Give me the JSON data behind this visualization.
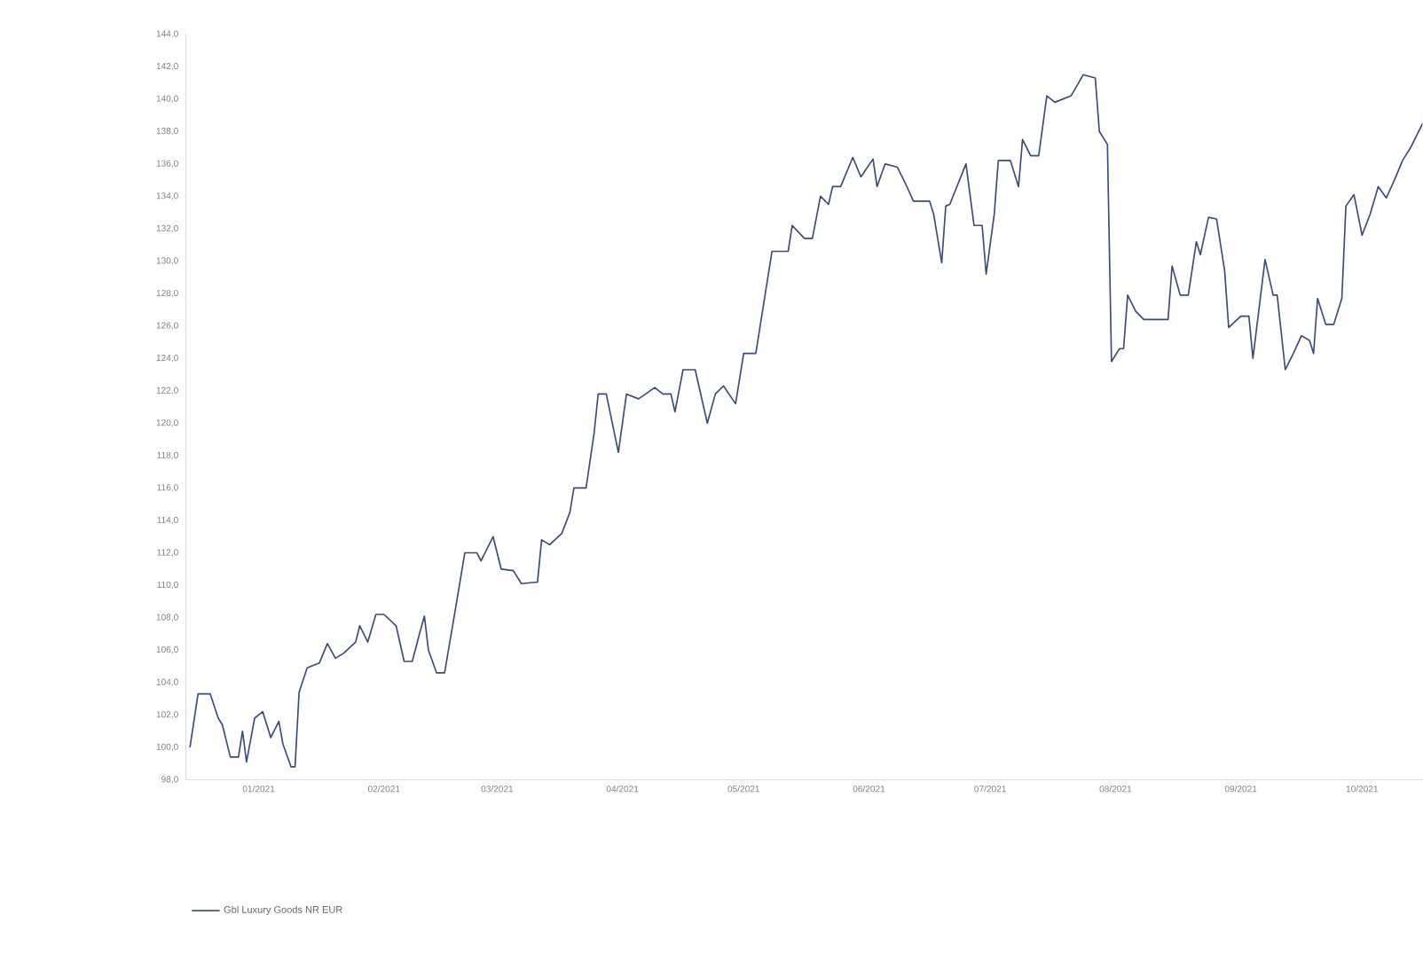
{
  "chart_data": {
    "type": "line",
    "x": [
      "2020-12-29",
      "2020-12-31",
      "2021-01-03",
      "2021-01-05",
      "2021-01-06",
      "2021-01-08",
      "2021-01-10",
      "2021-01-11",
      "2021-01-12",
      "2021-01-14",
      "2021-01-16",
      "2021-01-18",
      "2021-01-20",
      "2021-01-21",
      "2021-01-23",
      "2021-01-24",
      "2021-01-25",
      "2021-01-27",
      "2021-01-30",
      "2021-02-01",
      "2021-02-03",
      "2021-02-05",
      "2021-02-08",
      "2021-02-09",
      "2021-02-11",
      "2021-02-13",
      "2021-02-15",
      "2021-02-18",
      "2021-02-20",
      "2021-02-22",
      "2021-02-24",
      "2021-02-25",
      "2021-02-26",
      "2021-02-28",
      "2021-03-02",
      "2021-03-05",
      "2021-03-07",
      "2021-03-10",
      "2021-03-11",
      "2021-03-14",
      "2021-03-16",
      "2021-03-19",
      "2021-03-21",
      "2021-03-25",
      "2021-03-26",
      "2021-03-28",
      "2021-03-31",
      "2021-04-02",
      "2021-04-03",
      "2021-04-06",
      "2021-04-08",
      "2021-04-09",
      "2021-04-11",
      "2021-04-14",
      "2021-04-16",
      "2021-04-19",
      "2021-04-23",
      "2021-04-25",
      "2021-04-27",
      "2021-04-28",
      "2021-04-30",
      "2021-05-03",
      "2021-05-06",
      "2021-05-08",
      "2021-05-10",
      "2021-05-13",
      "2021-05-15",
      "2021-05-18",
      "2021-05-22",
      "2021-05-26",
      "2021-05-27",
      "2021-05-30",
      "2021-06-01",
      "2021-06-03",
      "2021-06-05",
      "2021-06-06",
      "2021-06-08",
      "2021-06-11",
      "2021-06-13",
      "2021-06-16",
      "2021-06-17",
      "2021-06-19",
      "2021-06-22",
      "2021-06-24",
      "2021-06-26",
      "2021-06-30",
      "2021-07-01",
      "2021-07-03",
      "2021-07-04",
      "2021-07-05",
      "2021-07-09",
      "2021-07-11",
      "2021-07-13",
      "2021-07-14",
      "2021-07-16",
      "2021-07-17",
      "2021-07-20",
      "2021-07-22",
      "2021-07-23",
      "2021-07-25",
      "2021-07-27",
      "2021-07-29",
      "2021-07-31",
      "2021-08-04",
      "2021-08-07",
      "2021-08-10",
      "2021-08-11",
      "2021-08-13",
      "2021-08-14",
      "2021-08-16",
      "2021-08-17",
      "2021-08-18",
      "2021-08-20",
      "2021-08-22",
      "2021-08-28",
      "2021-08-29",
      "2021-08-31",
      "2021-09-02",
      "2021-09-04",
      "2021-09-05",
      "2021-09-07",
      "2021-09-09",
      "2021-09-11",
      "2021-09-12",
      "2021-09-15",
      "2021-09-17",
      "2021-09-18",
      "2021-09-21",
      "2021-09-23",
      "2021-09-24",
      "2021-09-26",
      "2021-09-28",
      "2021-09-30",
      "2021-10-02",
      "2021-10-03",
      "2021-10-04",
      "2021-10-06",
      "2021-10-08",
      "2021-10-10",
      "2021-10-11",
      "2021-10-13",
      "2021-10-15",
      "2021-10-17",
      "2021-10-19",
      "2021-10-21",
      "2021-10-23",
      "2021-10-25",
      "2021-10-27",
      "2021-10-30"
    ],
    "series": [
      {
        "name": "Gbl Luxury Goods NR EUR",
        "color": "#3b4a7a",
        "values": [
          100.0,
          103.3,
          103.3,
          101.8,
          101.4,
          99.4,
          99.4,
          101.0,
          99.1,
          101.8,
          102.2,
          100.6,
          101.6,
          100.2,
          98.8,
          98.8,
          103.4,
          104.9,
          105.2,
          106.4,
          105.5,
          105.8,
          106.5,
          107.5,
          106.5,
          108.2,
          108.2,
          107.5,
          105.3,
          105.3,
          107.2,
          108.1,
          106.0,
          104.6,
          104.6,
          109.0,
          112.0,
          112.0,
          111.5,
          113.0,
          111.0,
          110.9,
          110.1,
          110.2,
          112.8,
          112.5,
          113.2,
          114.5,
          116.0,
          116.0,
          119.4,
          121.8,
          121.8,
          118.2,
          121.8,
          121.5,
          122.2,
          121.8,
          121.8,
          120.7,
          123.3,
          123.3,
          120.0,
          121.8,
          122.3,
          121.2,
          124.3,
          124.3,
          130.6,
          130.6,
          132.2,
          131.4,
          131.4,
          134.0,
          133.5,
          134.6,
          134.6,
          136.4,
          135.2,
          136.3,
          134.6,
          136.0,
          135.8,
          134.8,
          133.7,
          133.7,
          132.9,
          129.9,
          133.4,
          133.5,
          136.0,
          132.2,
          132.2,
          129.2,
          132.9,
          136.2,
          136.2,
          134.6,
          137.5,
          136.5,
          136.5,
          140.2,
          139.8,
          140.2,
          141.5,
          141.3,
          138.0,
          137.2,
          123.8,
          124.6,
          124.6,
          127.9,
          126.9,
          126.4,
          126.4,
          129.7,
          127.9,
          127.9,
          131.2,
          130.4,
          132.7,
          132.6,
          129.4,
          125.9,
          126.6,
          126.6,
          124.0,
          130.1,
          127.9,
          127.9,
          123.3,
          124.3,
          125.4,
          125.1,
          124.3,
          127.7,
          126.1,
          126.1,
          127.7,
          133.4,
          134.1,
          131.6,
          132.9,
          134.6,
          133.9,
          135.0,
          136.2,
          137.0,
          138.5
        ]
      }
    ],
    "xlim": [
      "2020-12-28",
      "2021-10-30"
    ],
    "xticks": [
      {
        "value": "2021-01-15",
        "label": "01/2021"
      },
      {
        "value": "2021-02-15",
        "label": "02/2021"
      },
      {
        "value": "2021-03-15",
        "label": "03/2021"
      },
      {
        "value": "2021-04-15",
        "label": "04/2021"
      },
      {
        "value": "2021-05-15",
        "label": "05/2021"
      },
      {
        "value": "2021-06-15",
        "label": "06/2021"
      },
      {
        "value": "2021-07-15",
        "label": "07/2021"
      },
      {
        "value": "2021-08-15",
        "label": "08/2021"
      },
      {
        "value": "2021-09-15",
        "label": "09/2021"
      },
      {
        "value": "2021-10-15",
        "label": "10/2021"
      }
    ],
    "ylim": [
      98,
      144
    ],
    "yticks": [
      {
        "value": 98,
        "label": "98,0"
      },
      {
        "value": 100,
        "label": "100,0"
      },
      {
        "value": 102,
        "label": "102,0"
      },
      {
        "value": 104,
        "label": "104,0"
      },
      {
        "value": 106,
        "label": "106,0"
      },
      {
        "value": 108,
        "label": "108,0"
      },
      {
        "value": 110,
        "label": "110,0"
      },
      {
        "value": 112,
        "label": "112,0"
      },
      {
        "value": 114,
        "label": "114,0"
      },
      {
        "value": 116,
        "label": "116,0"
      },
      {
        "value": 118,
        "label": "118,0"
      },
      {
        "value": 120,
        "label": "120,0"
      },
      {
        "value": 122,
        "label": "122,0"
      },
      {
        "value": 124,
        "label": "124,0"
      },
      {
        "value": 126,
        "label": "126,0"
      },
      {
        "value": 128,
        "label": "128,0"
      },
      {
        "value": 130,
        "label": "130,0"
      },
      {
        "value": 132,
        "label": "132,0"
      },
      {
        "value": 134,
        "label": "134,0"
      },
      {
        "value": 136,
        "label": "136,0"
      },
      {
        "value": 138,
        "label": "138,0"
      },
      {
        "value": 140,
        "label": "140,0"
      },
      {
        "value": 142,
        "label": "142,0"
      },
      {
        "value": 144,
        "label": "144,0"
      }
    ],
    "legend": "bottom left",
    "marker": "none",
    "line_style": "solid"
  }
}
